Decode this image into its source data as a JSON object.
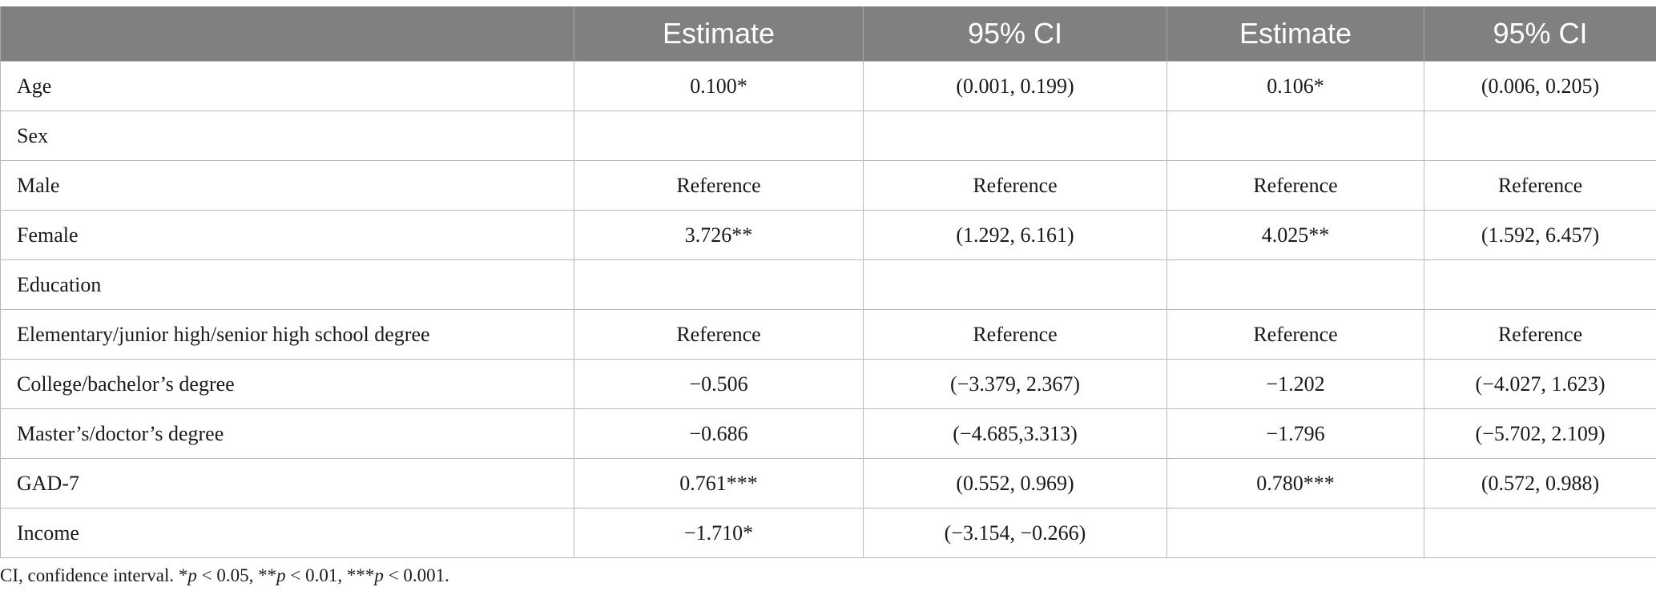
{
  "table": {
    "headers": [
      "",
      "Estimate",
      "95% CI",
      "Estimate",
      "95% CI"
    ],
    "rows": [
      [
        "Age",
        "0.100*",
        "(0.001, 0.199)",
        "0.106*",
        "(0.006, 0.205)"
      ],
      [
        "Sex",
        "",
        "",
        "",
        ""
      ],
      [
        "Male",
        "Reference",
        "Reference",
        "Reference",
        "Reference"
      ],
      [
        "Female",
        "3.726**",
        "(1.292, 6.161)",
        "4.025**",
        "(1.592, 6.457)"
      ],
      [
        "Education",
        "",
        "",
        "",
        ""
      ],
      [
        "Elementary/junior high/senior high school degree",
        "Reference",
        "Reference",
        "Reference",
        "Reference"
      ],
      [
        "College/bachelor’s degree",
        "−0.506",
        "(−3.379, 2.367)",
        "−1.202",
        "(−4.027, 1.623)"
      ],
      [
        "Master’s/doctor’s degree",
        "−0.686",
        "(−4.685,3.313)",
        "−1.796",
        "(−5.702, 2.109)"
      ],
      [
        "GAD-7",
        "0.761***",
        "(0.552, 0.969)",
        "0.780***",
        "(0.572, 0.988)"
      ],
      [
        "Income",
        "−1.710*",
        "(−3.154, −0.266)",
        "",
        ""
      ]
    ]
  },
  "footnote": {
    "prefix": "CI, confidence interval. *",
    "p1": "p",
    "t1": " < 0.05, **",
    "p2": "p",
    "t2": " < 0.01, ***",
    "p3": "p",
    "t3": " < 0.001."
  }
}
